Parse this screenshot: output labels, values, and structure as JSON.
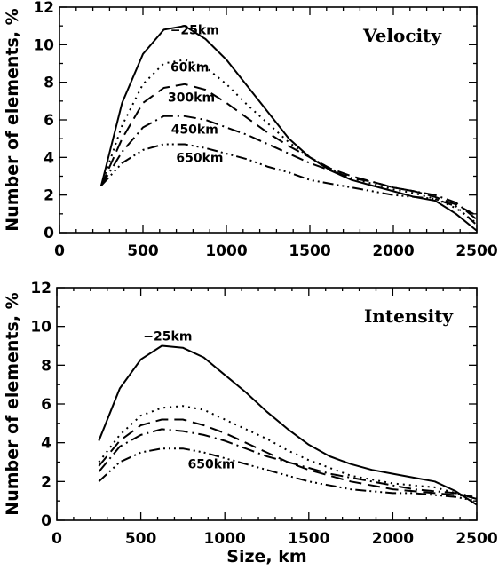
{
  "chart_data": [
    {
      "type": "line",
      "panel_label": "Velocity",
      "xlabel": "",
      "ylabel": "Number of elements, %",
      "xlim": [
        0,
        2500
      ],
      "ylim": [
        0,
        12
      ],
      "x_ticks": [
        "0",
        "500",
        "1000",
        "1500",
        "2000",
        "2500"
      ],
      "y_ticks": [
        "0",
        "2",
        "4",
        "6",
        "8",
        "10",
        "12"
      ],
      "grid": false,
      "x": [
        250,
        375,
        500,
        625,
        750,
        875,
        1000,
        1125,
        1250,
        1375,
        1500,
        1625,
        1750,
        1875,
        2000,
        2125,
        2250,
        2375,
        2500
      ],
      "series": [
        {
          "name": "−25km",
          "style": "solid",
          "values": [
            2.5,
            6.9,
            9.5,
            10.8,
            11.0,
            10.3,
            9.2,
            7.8,
            6.4,
            5.0,
            4.0,
            3.3,
            2.8,
            2.5,
            2.2,
            1.9,
            1.7,
            1.0,
            0.1
          ]
        },
        {
          "name": "60km",
          "style": "dotted",
          "values": [
            2.5,
            5.7,
            7.9,
            9.0,
            9.2,
            8.8,
            7.9,
            6.8,
            5.8,
            4.8,
            4.0,
            3.4,
            2.9,
            2.6,
            2.3,
            2.1,
            1.8,
            1.3,
            0.5
          ]
        },
        {
          "name": "300km",
          "style": "dashed",
          "values": [
            2.5,
            5.0,
            6.9,
            7.7,
            7.9,
            7.6,
            6.9,
            6.1,
            5.3,
            4.6,
            4.0,
            3.4,
            3.0,
            2.7,
            2.4,
            2.2,
            1.9,
            1.5,
            0.9
          ]
        },
        {
          "name": "450km",
          "style": "dashdot",
          "values": [
            2.5,
            4.3,
            5.6,
            6.2,
            6.2,
            6.0,
            5.6,
            5.2,
            4.7,
            4.2,
            3.7,
            3.3,
            2.9,
            2.7,
            2.4,
            2.2,
            2.0,
            1.6,
            0.7
          ]
        },
        {
          "name": "650km",
          "style": "dashdotdotdot",
          "values": [
            2.5,
            3.7,
            4.4,
            4.7,
            4.7,
            4.5,
            4.2,
            3.9,
            3.5,
            3.2,
            2.8,
            2.6,
            2.4,
            2.2,
            2.0,
            1.9,
            1.8,
            1.4,
            0.4
          ]
        }
      ]
    },
    {
      "type": "line",
      "panel_label": "Intensity",
      "xlabel": "Size, km",
      "ylabel": "Number of elements, %",
      "xlim": [
        0,
        2500
      ],
      "ylim": [
        0,
        12
      ],
      "x_ticks": [
        "0",
        "500",
        "1000",
        "1500",
        "2000",
        "2500"
      ],
      "y_ticks": [
        "0",
        "2",
        "4",
        "6",
        "8",
        "10",
        "12"
      ],
      "grid": false,
      "x": [
        250,
        375,
        500,
        625,
        750,
        875,
        1000,
        1125,
        1250,
        1375,
        1500,
        1625,
        1750,
        1875,
        2000,
        2125,
        2250,
        2375,
        2500
      ],
      "series": [
        {
          "name": "−25km",
          "style": "solid",
          "values": [
            4.1,
            6.8,
            8.3,
            9.0,
            8.9,
            8.4,
            7.5,
            6.6,
            5.6,
            4.7,
            3.9,
            3.3,
            2.9,
            2.6,
            2.4,
            2.2,
            2.0,
            1.5,
            0.8
          ]
        },
        {
          "name": "",
          "style": "dotted",
          "values": [
            3.0,
            4.4,
            5.4,
            5.8,
            5.9,
            5.7,
            5.2,
            4.7,
            4.2,
            3.6,
            3.1,
            2.7,
            2.3,
            2.1,
            1.9,
            1.8,
            1.7,
            1.4,
            1.2
          ]
        },
        {
          "name": "",
          "style": "dashed",
          "values": [
            2.8,
            4.1,
            4.9,
            5.2,
            5.2,
            4.9,
            4.5,
            4.0,
            3.5,
            3.0,
            2.6,
            2.3,
            2.0,
            1.8,
            1.6,
            1.5,
            1.4,
            1.3,
            1.2
          ]
        },
        {
          "name": "",
          "style": "dashdot",
          "values": [
            2.5,
            3.8,
            4.4,
            4.7,
            4.6,
            4.4,
            4.1,
            3.7,
            3.3,
            3.0,
            2.7,
            2.4,
            2.2,
            2.0,
            1.8,
            1.6,
            1.5,
            1.4,
            1.1
          ]
        },
        {
          "name": "650km",
          "style": "dashdotdotdot",
          "values": [
            2.0,
            3.0,
            3.5,
            3.7,
            3.7,
            3.5,
            3.2,
            2.9,
            2.6,
            2.3,
            2.0,
            1.8,
            1.6,
            1.5,
            1.4,
            1.4,
            1.3,
            1.2,
            1.0
          ]
        }
      ]
    }
  ]
}
